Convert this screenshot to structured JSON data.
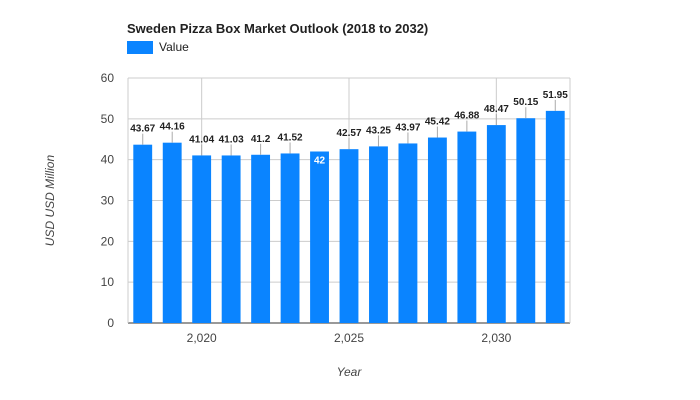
{
  "chart_data": {
    "type": "bar",
    "title": "Sweden Pizza Box Market Outlook (2018 to 2032)",
    "xlabel": "Year",
    "ylabel": "USD USD Million",
    "x": [
      2018,
      2019,
      2020,
      2021,
      2022,
      2023,
      2024,
      2025,
      2026,
      2027,
      2028,
      2029,
      2030,
      2031,
      2032
    ],
    "series": [
      {
        "name": "Value",
        "values": [
          43.67,
          44.16,
          41.04,
          41.03,
          41.2,
          41.52,
          42,
          42.57,
          43.25,
          43.97,
          45.42,
          46.88,
          48.47,
          50.15,
          51.95
        ]
      }
    ],
    "data_labels": [
      "43.67",
      "44.16",
      "41.04",
      "41.03",
      "41.2",
      "41.52",
      "42",
      "42.57",
      "43.25",
      "43.97",
      "45.42",
      "46.88",
      "48.47",
      "50.15",
      "51.95"
    ],
    "ylim": [
      0,
      60
    ],
    "yticks": [
      0,
      10,
      20,
      30,
      40,
      50,
      60
    ],
    "xticks": [
      2020,
      2025,
      2030
    ],
    "xtick_labels": [
      "2,020",
      "2,025",
      "2,030"
    ],
    "grid": true,
    "legend_position": "top-left",
    "bar_color": "#0a84ff",
    "highlight_label_index": 6
  }
}
